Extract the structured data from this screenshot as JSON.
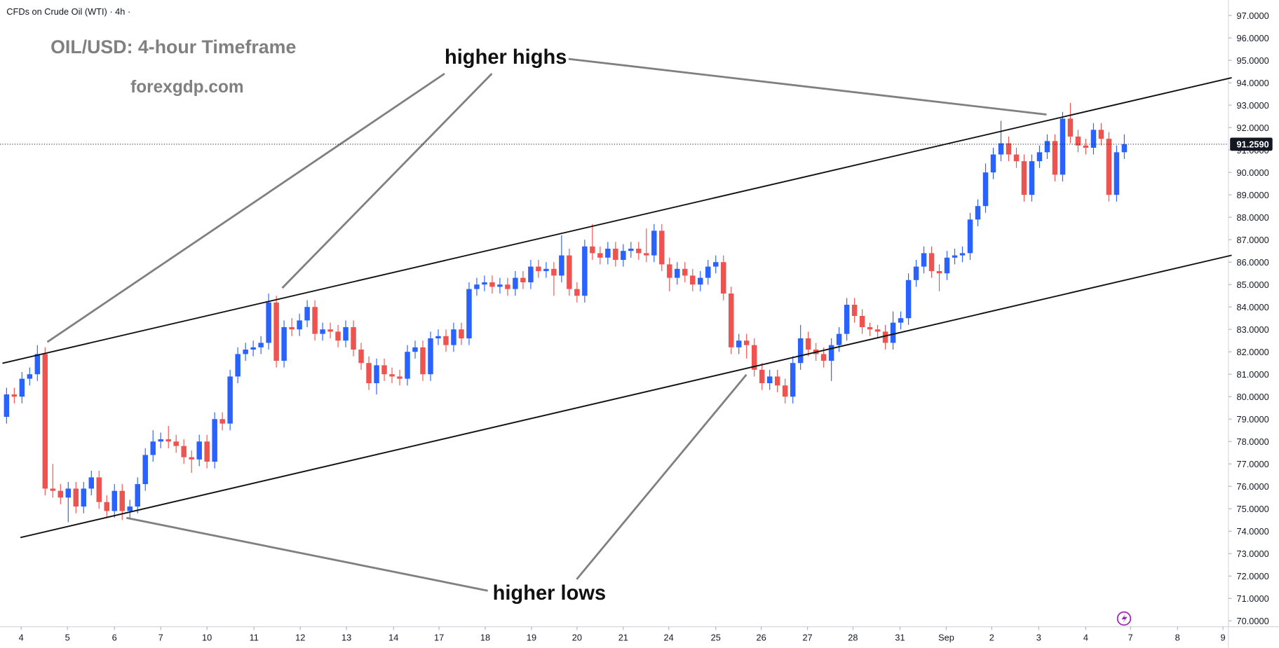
{
  "chart_data": {
    "type": "candlestick",
    "header": "CFDs on Crude Oil (WTI) · 4h ·",
    "title": "OIL/USD: 4-hour Timeframe",
    "subtitle": "forexgdp.com",
    "annotations": [
      "higher highs",
      "higher lows"
    ],
    "last_price_label": "91.2590",
    "up_color": "#2962ff",
    "down_color": "#ef5350",
    "xlim": [
      -0.85,
      158.4
    ],
    "xticks": [
      {
        "value": 1.9,
        "label": "4"
      },
      {
        "value": 7.9,
        "label": "5"
      },
      {
        "value": 14,
        "label": "6"
      },
      {
        "value": 20,
        "label": "7"
      },
      {
        "value": 26,
        "label": "10"
      },
      {
        "value": 32.1,
        "label": "11"
      },
      {
        "value": 38.1,
        "label": "12"
      },
      {
        "value": 44.1,
        "label": "13"
      },
      {
        "value": 50.2,
        "label": "14"
      },
      {
        "value": 56.1,
        "label": "17"
      },
      {
        "value": 62.1,
        "label": "18"
      },
      {
        "value": 68.1,
        "label": "19"
      },
      {
        "value": 74,
        "label": "20"
      },
      {
        "value": 80,
        "label": "21"
      },
      {
        "value": 85.9,
        "label": "24"
      },
      {
        "value": 92,
        "label": "25"
      },
      {
        "value": 97.9,
        "label": "26"
      },
      {
        "value": 103.9,
        "label": "27"
      },
      {
        "value": 109.8,
        "label": "28"
      },
      {
        "value": 115.9,
        "label": "31"
      },
      {
        "value": 121.9,
        "label": "Sep"
      },
      {
        "value": 127.8,
        "label": "2"
      },
      {
        "value": 133.9,
        "label": "3"
      },
      {
        "value": 140,
        "label": "4"
      },
      {
        "value": 145.8,
        "label": "7"
      },
      {
        "value": 151.9,
        "label": "8"
      },
      {
        "value": 157.8,
        "label": "9"
      }
    ],
    "ylim": [
      69.74,
      97.69
    ],
    "yticks": [
      {
        "value": 70,
        "label": "70.0000"
      },
      {
        "value": 71,
        "label": "71.0000"
      },
      {
        "value": 72,
        "label": "72.0000"
      },
      {
        "value": 73,
        "label": "73.0000"
      },
      {
        "value": 74,
        "label": "74.0000"
      },
      {
        "value": 75,
        "label": "75.0000"
      },
      {
        "value": 76,
        "label": "76.0000"
      },
      {
        "value": 77,
        "label": "77.0000"
      },
      {
        "value": 78,
        "label": "78.0000"
      },
      {
        "value": 79,
        "label": "79.0000"
      },
      {
        "value": 80,
        "label": "80.0000"
      },
      {
        "value": 81,
        "label": "81.0000"
      },
      {
        "value": 82,
        "label": "82.0000"
      },
      {
        "value": 83,
        "label": "83.0000"
      },
      {
        "value": 84,
        "label": "84.0000"
      },
      {
        "value": 85,
        "label": "85.0000"
      },
      {
        "value": 86,
        "label": "86.0000"
      },
      {
        "value": 87,
        "label": "87.0000"
      },
      {
        "value": 88,
        "label": "88.0000"
      },
      {
        "value": 89,
        "label": "89.0000"
      },
      {
        "value": 90,
        "label": "90.0000"
      },
      {
        "value": 91,
        "label": "91.0000"
      },
      {
        "value": 92,
        "label": "92.0000"
      },
      {
        "value": 93,
        "label": "93.0000"
      },
      {
        "value": 94,
        "label": "94.0000"
      },
      {
        "value": 95,
        "label": "95.0000"
      },
      {
        "value": 96,
        "label": "96.0000"
      },
      {
        "value": 97,
        "label": "97.0000"
      }
    ],
    "open": [
      79.1,
      80.1,
      80.0,
      80.8,
      81.0,
      81.9,
      75.9,
      75.8,
      75.5,
      75.9,
      75.1,
      75.9,
      76.4,
      75.3,
      74.9,
      75.8,
      74.9,
      75.1,
      76.1,
      77.4,
      78.0,
      78.1,
      78.0,
      77.8,
      77.3,
      77.2,
      78.0,
      77.1,
      79.0,
      78.8,
      80.9,
      81.9,
      82.1,
      82.2,
      82.4,
      84.2,
      81.6,
      83.1,
      83.0,
      83.4,
      84.0,
      82.8,
      83.0,
      82.9,
      82.5,
      83.1,
      82.1,
      81.5,
      80.6,
      81.4,
      81.0,
      80.9,
      80.8,
      82.0,
      82.2,
      81.0,
      82.6,
      82.7,
      82.3,
      83.0,
      82.6,
      84.8,
      85.0,
      85.1,
      84.9,
      85.0,
      84.8,
      85.3,
      85.1,
      85.8,
      85.6,
      85.7,
      85.4,
      86.3,
      84.8,
      84.5,
      86.7,
      86.4,
      86.2,
      86.6,
      86.1,
      86.5,
      86.6,
      86.4,
      86.3,
      87.4,
      85.9,
      85.3,
      85.7,
      85.4,
      85.0,
      85.3,
      85.8,
      86.0,
      84.6,
      82.2,
      82.5,
      82.3,
      81.2,
      80.6,
      80.9,
      80.5,
      80.0,
      81.5,
      82.6,
      82.1,
      81.9,
      81.6,
      82.3,
      82.8,
      84.1,
      83.6,
      83.1,
      83.0,
      82.9,
      82.4,
      83.3,
      83.5,
      85.2,
      85.8,
      86.4,
      85.6,
      85.5,
      86.2,
      86.3,
      86.4,
      87.9,
      88.5,
      90.0,
      90.8,
      91.3,
      90.8,
      90.5,
      89.0,
      90.5,
      90.9,
      91.4,
      89.9,
      92.4,
      91.6,
      91.2,
      91.1,
      91.9,
      91.5,
      89.0,
      90.9
    ],
    "high": [
      80.4,
      80.4,
      81.1,
      81.3,
      82.3,
      82.2,
      77.0,
      76.1,
      76.2,
      76.2,
      76.2,
      76.7,
      76.7,
      75.6,
      76.1,
      76.1,
      75.4,
      76.4,
      77.7,
      78.5,
      78.4,
      78.7,
      78.3,
      78.1,
      77.6,
      78.3,
      78.3,
      79.3,
      79.3,
      81.2,
      82.2,
      82.4,
      82.5,
      82.7,
      84.6,
      84.5,
      83.4,
      83.5,
      83.7,
      84.3,
      84.3,
      83.3,
      83.3,
      83.2,
      83.4,
      83.4,
      82.4,
      81.8,
      81.7,
      81.7,
      81.3,
      81.2,
      82.3,
      82.5,
      82.5,
      82.9,
      83.0,
      83.0,
      83.3,
      83.3,
      85.1,
      85.3,
      85.4,
      85.4,
      85.3,
      85.3,
      85.6,
      85.6,
      86.1,
      86.1,
      86.0,
      86.0,
      87.2,
      86.6,
      85.1,
      87.0,
      87.7,
      86.7,
      86.9,
      86.9,
      86.8,
      86.9,
      86.9,
      87.5,
      87.7,
      87.7,
      86.2,
      86.0,
      86.0,
      85.7,
      85.6,
      86.1,
      86.3,
      86.3,
      84.9,
      82.8,
      82.8,
      82.6,
      81.5,
      81.2,
      81.2,
      80.8,
      81.8,
      83.2,
      82.9,
      82.4,
      82.2,
      82.6,
      83.1,
      84.4,
      84.4,
      83.9,
      83.3,
      83.2,
      83.2,
      83.8,
      83.8,
      85.5,
      86.1,
      86.7,
      86.7,
      85.9,
      86.5,
      86.6,
      86.7,
      88.2,
      88.8,
      90.4,
      91.1,
      92.3,
      91.6,
      91.1,
      90.8,
      90.8,
      91.2,
      91.7,
      91.7,
      92.7,
      93.1,
      91.9,
      91.5,
      92.2,
      92.2,
      91.8,
      91.2,
      91.7
    ],
    "low": [
      78.8,
      79.7,
      79.7,
      80.5,
      80.7,
      75.6,
      75.5,
      75.2,
      74.4,
      74.8,
      74.8,
      75.6,
      75.0,
      74.6,
      74.6,
      74.5,
      74.6,
      74.8,
      75.8,
      77.1,
      77.7,
      77.7,
      77.5,
      77.0,
      76.6,
      76.9,
      76.8,
      76.8,
      78.5,
      78.5,
      80.6,
      81.6,
      81.8,
      81.9,
      82.1,
      81.3,
      81.3,
      82.7,
      82.7,
      83.1,
      82.5,
      82.5,
      82.6,
      82.2,
      82.2,
      81.8,
      81.2,
      80.3,
      80.1,
      80.7,
      80.6,
      80.5,
      80.5,
      81.7,
      80.7,
      80.7,
      82.3,
      82.0,
      82.0,
      82.3,
      82.3,
      84.5,
      84.7,
      84.6,
      84.6,
      84.5,
      84.5,
      84.8,
      84.8,
      85.3,
      85.3,
      84.5,
      85.1,
      84.5,
      84.2,
      84.2,
      86.1,
      85.9,
      85.9,
      85.8,
      85.8,
      86.2,
      86.1,
      86.0,
      86.0,
      85.6,
      84.7,
      85.0,
      85.1,
      84.7,
      84.7,
      85.0,
      85.5,
      84.3,
      81.9,
      81.9,
      81.7,
      80.9,
      80.3,
      80.3,
      80.2,
      79.7,
      79.7,
      81.2,
      81.8,
      81.6,
      81.3,
      80.7,
      82.0,
      82.5,
      83.3,
      82.8,
      82.7,
      82.6,
      82.1,
      82.1,
      83.0,
      83.2,
      84.9,
      85.5,
      85.3,
      84.7,
      85.2,
      85.9,
      86.0,
      86.1,
      87.6,
      88.2,
      89.7,
      90.5,
      90.5,
      90.2,
      88.7,
      88.7,
      90.2,
      90.6,
      89.6,
      89.6,
      91.3,
      90.9,
      90.8,
      90.8,
      91.2,
      88.7,
      88.7,
      90.6
    ],
    "close": [
      80.1,
      80.0,
      80.8,
      81.0,
      81.9,
      75.9,
      75.8,
      75.5,
      75.9,
      75.1,
      75.9,
      76.4,
      75.3,
      74.9,
      75.8,
      74.9,
      75.1,
      76.1,
      77.4,
      78.0,
      78.1,
      78.0,
      77.8,
      77.3,
      77.2,
      78.0,
      77.1,
      79.0,
      78.8,
      80.9,
      81.9,
      82.1,
      82.2,
      82.4,
      84.2,
      81.6,
      83.1,
      83.0,
      83.4,
      84.0,
      82.8,
      83.0,
      82.9,
      82.5,
      83.1,
      82.1,
      81.5,
      80.6,
      81.4,
      81.0,
      80.9,
      80.8,
      82.0,
      82.2,
      81.0,
      82.6,
      82.7,
      82.3,
      83.0,
      82.6,
      84.8,
      85.0,
      85.1,
      84.9,
      85.0,
      84.8,
      85.3,
      85.1,
      85.8,
      85.6,
      85.7,
      85.4,
      86.3,
      84.8,
      84.5,
      86.7,
      86.4,
      86.2,
      86.6,
      86.1,
      86.5,
      86.6,
      86.4,
      86.3,
      87.4,
      85.9,
      85.3,
      85.7,
      85.4,
      85.0,
      85.3,
      85.8,
      86.0,
      84.6,
      82.2,
      82.5,
      82.3,
      81.2,
      80.6,
      80.9,
      80.5,
      80.0,
      81.5,
      82.6,
      82.1,
      81.9,
      81.6,
      82.3,
      82.8,
      84.1,
      83.6,
      83.1,
      83.0,
      82.9,
      82.4,
      83.3,
      83.5,
      85.2,
      85.8,
      86.4,
      85.6,
      85.5,
      86.2,
      86.3,
      86.4,
      87.9,
      88.5,
      90.0,
      90.8,
      91.3,
      90.8,
      90.5,
      89.0,
      90.5,
      90.9,
      91.4,
      89.9,
      92.4,
      91.6,
      91.2,
      91.1,
      91.9,
      91.5,
      89.0,
      90.9,
      91.259
    ]
  }
}
